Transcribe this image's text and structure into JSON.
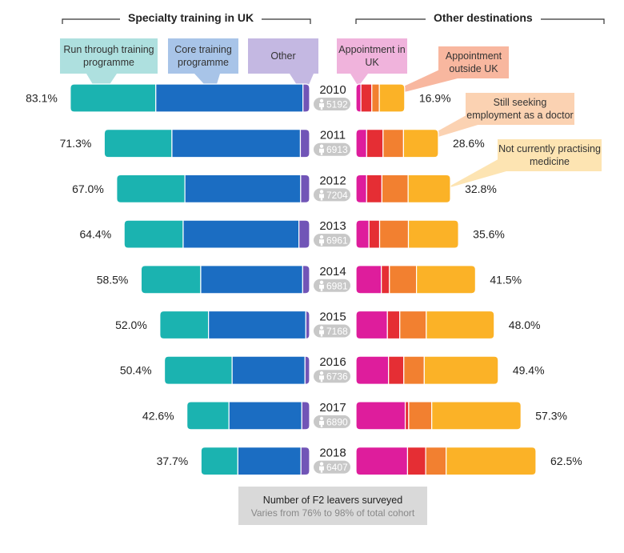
{
  "headers": {
    "left": "Specialty training in UK",
    "right": "Other destinations"
  },
  "legend": {
    "run_through": "Run through training programme",
    "core": "Core training programme",
    "other": "Other",
    "appointment_uk": "Appointment in UK",
    "appointment_outside": "Appointment outside UK",
    "still_seeking": "Still seeking employment as a doctor",
    "not_practising": "Not currently practising medicine"
  },
  "note": {
    "line1": "Number of F2 leavers surveyed",
    "line2": "Varies from 76% to 98% of total cohort"
  },
  "colors": {
    "run_through": "#1bb3b0",
    "core": "#1b6dc2",
    "other": "#7155b7",
    "appointment_uk": "#de1d9c",
    "appointment_outside": "#e52e34",
    "still_seeking": "#f28030",
    "not_practising": "#fbb227",
    "badge": "#c8c8c8",
    "leg_run": "#aee0df",
    "leg_core": "#a8c4e8",
    "leg_other": "#c4b8e2",
    "leg_app_uk": "#f0b3dc",
    "leg_app_out": "#f8b79f",
    "leg_seek": "#fbd2b2",
    "leg_notp": "#fde4b2"
  },
  "chart_data": {
    "type": "bar",
    "orientation": "horizontal-diverging",
    "categories": [
      "2010",
      "2011",
      "2012",
      "2013",
      "2014",
      "2015",
      "2016",
      "2017",
      "2018"
    ],
    "respondents": [
      "5192",
      "6913",
      "7204",
      "6961",
      "6981",
      "7168",
      "6736",
      "6890",
      "6407"
    ],
    "totals_left": [
      "83.1%",
      "71.3%",
      "67.0%",
      "64.4%",
      "58.5%",
      "52.0%",
      "50.4%",
      "42.6%",
      "37.7%"
    ],
    "totals_right": [
      "16.9%",
      "28.6%",
      "32.8%",
      "35.6%",
      "41.5%",
      "48.0%",
      "49.4%",
      "57.3%",
      "62.5%"
    ],
    "left_series": [
      {
        "name": "Run through training programme",
        "values": [
          29.7,
          23.5,
          23.7,
          20.5,
          20.7,
          16.9,
          23.5,
          14.6,
          12.8
        ]
      },
      {
        "name": "Core training programme",
        "values": [
          51.1,
          44.6,
          40.2,
          40.2,
          35.4,
          33.8,
          25.3,
          25.3,
          21.9
        ]
      },
      {
        "name": "Other",
        "values": [
          2.3,
          3.2,
          3.1,
          3.7,
          2.4,
          1.3,
          1.6,
          2.7,
          3.0
        ]
      }
    ],
    "right_series": [
      {
        "name": "Appointment in UK",
        "values": [
          1.7,
          3.7,
          3.7,
          4.5,
          8.8,
          10.9,
          11.3,
          17.1,
          17.9
        ]
      },
      {
        "name": "Appointment outside UK",
        "values": [
          3.8,
          5.7,
          5.3,
          3.7,
          2.8,
          4.3,
          5.3,
          1.2,
          6.3
        ]
      },
      {
        "name": "Still seeking employment as a doctor",
        "values": [
          2.6,
          7.1,
          9.1,
          10.0,
          9.4,
          9.2,
          7.1,
          8.0,
          7.1
        ]
      },
      {
        "name": "Not currently practising medicine",
        "values": [
          8.8,
          12.1,
          14.7,
          17.4,
          20.5,
          23.6,
          25.7,
          31.0,
          31.2
        ]
      }
    ]
  }
}
